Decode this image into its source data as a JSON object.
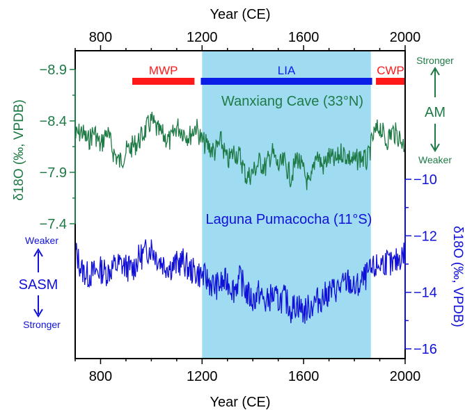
{
  "chart_data": {
    "type": "line",
    "xlabel_top": "Year (CE)",
    "xlabel_bottom": "Year (CE)",
    "xlim": [
      700,
      2000
    ],
    "x_ticks": [
      800,
      1200,
      1600,
      2000
    ],
    "x_tick_labels": [
      "800",
      "1200",
      "1600",
      "2000"
    ],
    "left_axis": {
      "label": "δ18O (‰, VPDB)",
      "reversed": true,
      "ticks": [
        -8.9,
        -8.4,
        -7.9,
        -7.4
      ],
      "tick_labels": [
        "-8.9",
        "-8.4",
        "-7.9",
        "-7.4"
      ],
      "color": "#1e7a45"
    },
    "right_axis": {
      "label": "δ18O (‰, VPDB)",
      "reversed": false,
      "ticks": [
        -10,
        -12,
        -14,
        -16
      ],
      "tick_labels": [
        "-10",
        "-12",
        "-14",
        "-16"
      ],
      "color": "#1010d8"
    },
    "periods": [
      {
        "name": "MWP",
        "start": 925,
        "end": 1170,
        "color": "#ff1a1a"
      },
      {
        "name": "LIA",
        "start": 1195,
        "end": 1870,
        "color": "#0a1ee6"
      },
      {
        "name": "CWP",
        "start": 1885,
        "end": 2000,
        "color": "#ff1a1a"
      }
    ],
    "lia_shading": {
      "start": 1200,
      "end": 1865,
      "color": "#9fdcf2"
    },
    "series": [
      {
        "name": "Wanxiang Cave (33°N)",
        "axis": "left",
        "color": "#1e7a45",
        "x": [
          700,
          725,
          750,
          775,
          800,
          825,
          850,
          875,
          900,
          925,
          950,
          975,
          1000,
          1025,
          1050,
          1075,
          1100,
          1125,
          1150,
          1175,
          1200,
          1225,
          1250,
          1275,
          1300,
          1325,
          1350,
          1375,
          1400,
          1425,
          1450,
          1475,
          1500,
          1525,
          1550,
          1575,
          1600,
          1625,
          1650,
          1675,
          1700,
          1725,
          1750,
          1775,
          1800,
          1825,
          1850,
          1875,
          1900,
          1925,
          1950,
          1975,
          2000
        ],
        "y": [
          -8.25,
          -8.3,
          -8.2,
          -8.3,
          -8.15,
          -8.3,
          -8.1,
          -8.0,
          -8.1,
          -8.15,
          -8.2,
          -8.3,
          -8.4,
          -8.3,
          -8.25,
          -8.2,
          -8.35,
          -8.3,
          -8.25,
          -8.35,
          -8.2,
          -8.15,
          -8.1,
          -8.2,
          -8.0,
          -8.1,
          -8.05,
          -7.85,
          -7.9,
          -8.0,
          -7.95,
          -8.1,
          -7.95,
          -8.0,
          -7.85,
          -8.05,
          -7.9,
          -7.75,
          -8.1,
          -7.95,
          -8.05,
          -8.0,
          -8.1,
          -8.05,
          -8.0,
          -8.05,
          -8.0,
          -8.25,
          -8.35,
          -8.2,
          -8.3,
          -8.25,
          -8.15
        ]
      },
      {
        "name": "Laguna Pumacocha (11°S)",
        "axis": "right",
        "color": "#1010d8",
        "x": [
          700,
          725,
          750,
          775,
          800,
          825,
          850,
          875,
          900,
          925,
          950,
          975,
          1000,
          1025,
          1050,
          1075,
          1100,
          1125,
          1150,
          1175,
          1200,
          1225,
          1250,
          1275,
          1300,
          1325,
          1350,
          1375,
          1400,
          1425,
          1450,
          1475,
          1500,
          1525,
          1550,
          1575,
          1600,
          1625,
          1650,
          1675,
          1700,
          1725,
          1750,
          1775,
          1800,
          1825,
          1850,
          1875,
          1900,
          1925,
          1950,
          1975,
          2000
        ],
        "y": [
          -12.5,
          -13.2,
          -13.4,
          -13.3,
          -13.2,
          -13.3,
          -13.1,
          -13.0,
          -13.1,
          -13.2,
          -12.8,
          -12.6,
          -12.4,
          -12.8,
          -13.0,
          -13.1,
          -13.0,
          -12.9,
          -13.2,
          -13.3,
          -13.4,
          -13.6,
          -13.8,
          -13.7,
          -13.6,
          -13.9,
          -13.5,
          -14.0,
          -14.3,
          -14.0,
          -14.4,
          -14.1,
          -14.3,
          -14.2,
          -14.6,
          -14.4,
          -14.7,
          -14.5,
          -14.3,
          -14.2,
          -14.0,
          -13.9,
          -13.8,
          -13.6,
          -13.9,
          -13.7,
          -13.4,
          -13.2,
          -13.0,
          -12.9,
          -13.1,
          -12.8,
          -12.6
        ]
      }
    ],
    "annotations": {
      "am_label": "AM",
      "am_top": "Stronger",
      "am_bottom": "Weaker",
      "sasm_label": "SASM",
      "sasm_top": "Weaker",
      "sasm_bottom": "Stronger"
    }
  }
}
